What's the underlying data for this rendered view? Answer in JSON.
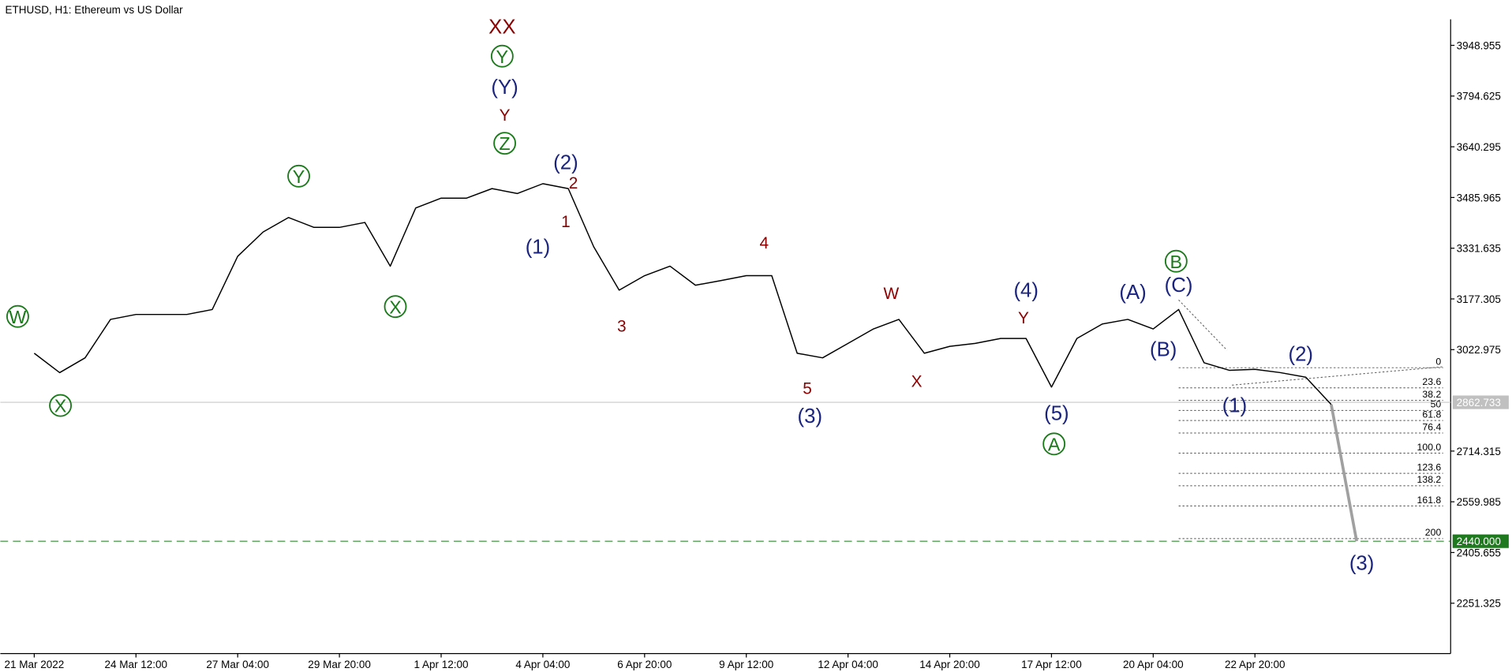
{
  "chart_data": {
    "type": "line",
    "title": "ETHUSD, H1:  Ethereum vs US Dollar",
    "categories": [
      "21 Mar 2022",
      null,
      null,
      null,
      "24 Mar 12:00",
      null,
      null,
      null,
      "27 Mar 04:00",
      null,
      null,
      null,
      "29 Mar 20:00",
      null,
      null,
      null,
      "1 Apr 12:00",
      null,
      null,
      null,
      "4 Apr 04:00",
      null,
      null,
      null,
      "6 Apr 20:00",
      null,
      null,
      null,
      "9 Apr 12:00",
      null,
      null,
      null,
      "12 Apr 04:00",
      null,
      null,
      null,
      "14 Apr 20:00",
      null,
      null,
      null,
      "17 Apr 12:00",
      null,
      null,
      null,
      "20 Apr 04:00",
      null,
      null,
      null,
      "22 Apr 20:00",
      null,
      null,
      null,
      null
    ],
    "series": [
      {
        "name": "ETHUSD",
        "color": "#000000",
        "values": [
          3012,
          2953,
          2998,
          3115,
          3130,
          3130,
          3130,
          3145,
          3307,
          3381,
          3425,
          3395,
          3395,
          3410,
          3277,
          3454,
          3484,
          3484,
          3513,
          3498,
          3528,
          3513,
          3336,
          3204,
          3248,
          3277,
          3219,
          3233,
          3248,
          3248,
          3012,
          2998,
          3042,
          3086,
          3115,
          3012,
          3033,
          3042,
          3057,
          3057,
          2909,
          3057,
          3101,
          3115,
          3086,
          3145,
          2983,
          2960,
          2963,
          2953,
          2939,
          2856,
          null
        ]
      },
      {
        "name": "forecast",
        "color": "#a0a0a0",
        "values": [
          null,
          null,
          null,
          null,
          null,
          null,
          null,
          null,
          null,
          null,
          null,
          null,
          null,
          null,
          null,
          null,
          null,
          null,
          null,
          null,
          null,
          null,
          null,
          null,
          null,
          null,
          null,
          null,
          null,
          null,
          null,
          null,
          null,
          null,
          null,
          null,
          null,
          null,
          null,
          null,
          null,
          null,
          null,
          null,
          null,
          null,
          null,
          null,
          null,
          null,
          null,
          2856,
          2440
        ]
      }
    ],
    "ylim": [
      2098,
      4028
    ],
    "yticks": [
      3948.955,
      3794.625,
      3640.295,
      3485.965,
      3331.635,
      3177.305,
      3022.975,
      2714.315,
      2559.985,
      2405.655,
      2251.325
    ],
    "current_price": 2862.733,
    "target": {
      "value": 2440,
      "label": "2440.000"
    },
    "fibonacci": {
      "price_0": 2968,
      "price_100": 2708,
      "start": 45.0,
      "end": 55.4,
      "levels": [
        0,
        23.6,
        38.2,
        50,
        61.8,
        76.4,
        {
          "value": 100,
          "label": "100.0"
        },
        123.6,
        138.2,
        161.8,
        200
      ]
    },
    "annotations": [
      {
        "text": "XX",
        "color": "#8b0000",
        "x": 18.4,
        "y": 4005,
        "circled": false
      },
      {
        "text": "Y",
        "color": "#1a7a1a",
        "x": 18.4,
        "y": 3916,
        "circled": true
      },
      {
        "text": "(Y)",
        "color": "#1a237e",
        "x": 18.5,
        "y": 3822,
        "circled": false
      },
      {
        "text": "Y",
        "color": "#8b0000",
        "x": 18.5,
        "y": 3740,
        "circled": false
      },
      {
        "text": "Z",
        "color": "#1a7a1a",
        "x": 18.5,
        "y": 3651,
        "circled": true
      },
      {
        "text": "(2)",
        "color": "#1a237e",
        "x": 20.9,
        "y": 3593,
        "circled": false
      },
      {
        "text": "2",
        "color": "#8b0000",
        "x": 21.2,
        "y": 3534,
        "circled": false
      },
      {
        "text": "1",
        "color": "#8b0000",
        "x": 20.9,
        "y": 3416,
        "circled": false
      },
      {
        "text": "(1)",
        "color": "#1a237e",
        "x": 19.8,
        "y": 3336,
        "circled": false
      },
      {
        "text": "W",
        "color": "#1a7a1a",
        "x": -0.65,
        "y": 3124,
        "circled": true
      },
      {
        "text": "X",
        "color": "#1a7a1a",
        "x": 1.03,
        "y": 2853,
        "circled": true
      },
      {
        "text": "Y",
        "color": "#1a7a1a",
        "x": 10.4,
        "y": 3551,
        "circled": true
      },
      {
        "text": "X",
        "color": "#1a7a1a",
        "x": 14.2,
        "y": 3154,
        "circled": true
      },
      {
        "text": "3",
        "color": "#8b0000",
        "x": 23.1,
        "y": 3098,
        "circled": false
      },
      {
        "text": "4",
        "color": "#8b0000",
        "x": 28.7,
        "y": 3351,
        "circled": false
      },
      {
        "text": "5",
        "color": "#8b0000",
        "x": 30.4,
        "y": 2909,
        "circled": false
      },
      {
        "text": "(3)",
        "color": "#1a237e",
        "x": 30.5,
        "y": 2821,
        "circled": false
      },
      {
        "text": "W",
        "color": "#8b0000",
        "x": 33.7,
        "y": 3198,
        "circled": false
      },
      {
        "text": "X",
        "color": "#8b0000",
        "x": 34.7,
        "y": 2930,
        "circled": false
      },
      {
        "text": "(4)",
        "color": "#1a237e",
        "x": 39.0,
        "y": 3204,
        "circled": false
      },
      {
        "text": "Y",
        "color": "#8b0000",
        "x": 38.9,
        "y": 3124,
        "circled": false
      },
      {
        "text": "(5)",
        "color": "#1a237e",
        "x": 40.2,
        "y": 2830,
        "circled": false
      },
      {
        "text": "A",
        "color": "#1a7a1a",
        "x": 40.1,
        "y": 2736,
        "circled": true
      },
      {
        "text": "(A)",
        "color": "#1a237e",
        "x": 43.2,
        "y": 3198,
        "circled": false
      },
      {
        "text": "B",
        "color": "#1a7a1a",
        "x": 44.9,
        "y": 3292,
        "circled": true
      },
      {
        "text": "(C)",
        "color": "#1a237e",
        "x": 45.0,
        "y": 3219,
        "circled": false
      },
      {
        "text": "(B)",
        "color": "#1a237e",
        "x": 44.4,
        "y": 3024,
        "circled": false
      },
      {
        "text": "(1)",
        "color": "#1a237e",
        "x": 47.2,
        "y": 2853,
        "circled": false
      },
      {
        "text": "(2)",
        "color": "#1a237e",
        "x": 49.8,
        "y": 3009,
        "circled": false
      },
      {
        "text": "(3)",
        "color": "#1a237e",
        "x": 52.2,
        "y": 2373,
        "circled": false
      }
    ]
  }
}
